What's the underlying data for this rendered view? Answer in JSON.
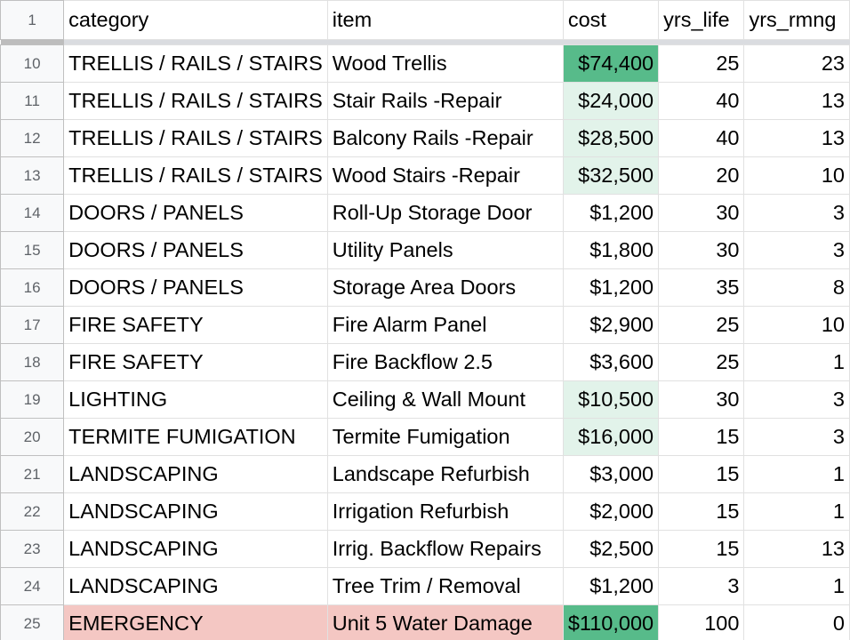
{
  "header": {
    "row_number": "1",
    "columns": [
      "category",
      "item",
      "cost",
      "yrs_life",
      "yrs_rmng"
    ]
  },
  "colors": {
    "cost_dark": "#57bb8a",
    "cost_light": "#e2f3ea",
    "emergency": "#f4c7c3"
  },
  "rows": [
    {
      "n": "10",
      "category": "TRELLIS / RAILS / STAIRS",
      "item": "Wood Trellis",
      "cost": "$74,400",
      "yrs_life": "25",
      "yrs_rmng": "23",
      "cost_fill": "dark"
    },
    {
      "n": "11",
      "category": "TRELLIS / RAILS / STAIRS",
      "item": "Stair Rails -Repair",
      "cost": "$24,000",
      "yrs_life": "40",
      "yrs_rmng": "13",
      "cost_fill": "light"
    },
    {
      "n": "12",
      "category": "TRELLIS / RAILS / STAIRS",
      "item": "Balcony Rails -Repair",
      "cost": "$28,500",
      "yrs_life": "40",
      "yrs_rmng": "13",
      "cost_fill": "light"
    },
    {
      "n": "13",
      "category": "TRELLIS / RAILS / STAIRS",
      "item": "Wood Stairs -Repair",
      "cost": "$32,500",
      "yrs_life": "20",
      "yrs_rmng": "10",
      "cost_fill": "light"
    },
    {
      "n": "14",
      "category": "DOORS / PANELS",
      "item": "Roll-Up Storage Door",
      "cost": "$1,200",
      "yrs_life": "30",
      "yrs_rmng": "3",
      "cost_fill": "none"
    },
    {
      "n": "15",
      "category": "DOORS / PANELS",
      "item": "Utility Panels",
      "cost": "$1,800",
      "yrs_life": "30",
      "yrs_rmng": "3",
      "cost_fill": "none"
    },
    {
      "n": "16",
      "category": "DOORS / PANELS",
      "item": "Storage Area Doors",
      "cost": "$1,200",
      "yrs_life": "35",
      "yrs_rmng": "8",
      "cost_fill": "none"
    },
    {
      "n": "17",
      "category": "FIRE SAFETY",
      "item": "Fire Alarm Panel",
      "cost": "$2,900",
      "yrs_life": "25",
      "yrs_rmng": "10",
      "cost_fill": "none"
    },
    {
      "n": "18",
      "category": "FIRE SAFETY",
      "item": "Fire Backflow 2.5",
      "cost": "$3,600",
      "yrs_life": "25",
      "yrs_rmng": "1",
      "cost_fill": "none"
    },
    {
      "n": "19",
      "category": "LIGHTING",
      "item": "Ceiling & Wall Mount",
      "cost": "$10,500",
      "yrs_life": "30",
      "yrs_rmng": "3",
      "cost_fill": "light"
    },
    {
      "n": "20",
      "category": "TERMITE FUMIGATION",
      "item": "Termite Fumigation",
      "cost": "$16,000",
      "yrs_life": "15",
      "yrs_rmng": "3",
      "cost_fill": "light"
    },
    {
      "n": "21",
      "category": "LANDSCAPING",
      "item": "Landscape Refurbish",
      "cost": "$3,000",
      "yrs_life": "15",
      "yrs_rmng": "1",
      "cost_fill": "none"
    },
    {
      "n": "22",
      "category": "LANDSCAPING",
      "item": "Irrigation Refurbish",
      "cost": "$2,000",
      "yrs_life": "15",
      "yrs_rmng": "1",
      "cost_fill": "none"
    },
    {
      "n": "23",
      "category": "LANDSCAPING",
      "item": "Irrig. Backflow Repairs",
      "cost": "$2,500",
      "yrs_life": "15",
      "yrs_rmng": "13",
      "cost_fill": "none"
    },
    {
      "n": "24",
      "category": "LANDSCAPING",
      "item": "Tree Trim / Removal",
      "cost": "$1,200",
      "yrs_life": "3",
      "yrs_rmng": "1",
      "cost_fill": "none"
    },
    {
      "n": "25",
      "category": "EMERGENCY",
      "item": "Unit 5 Water Damage",
      "cost": "$110,000",
      "yrs_life": "100",
      "yrs_rmng": "0",
      "cost_fill": "dark",
      "highlight": "emergency"
    }
  ]
}
